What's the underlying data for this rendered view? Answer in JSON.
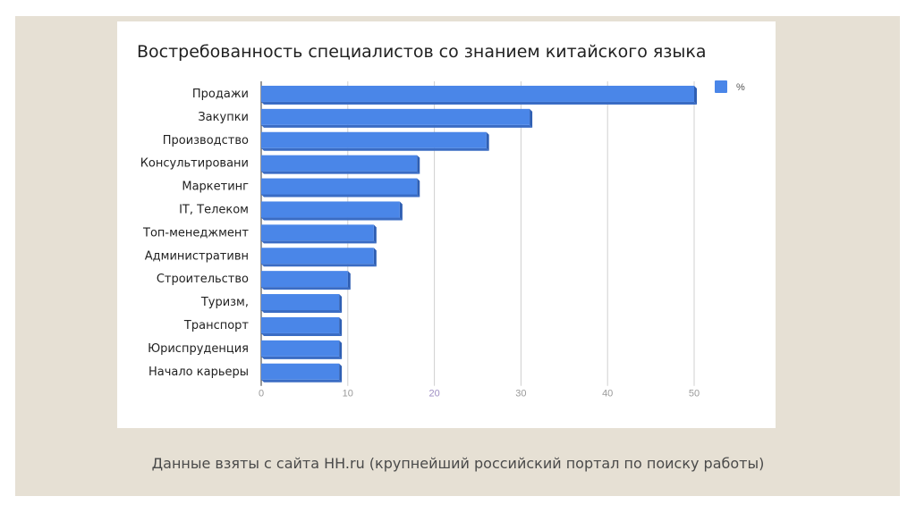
{
  "slide": {
    "caption": "Данные взяты с сайта HH.ru (крупнейший российский портал по поиску работы)"
  },
  "chart_data": {
    "type": "bar",
    "orientation": "horizontal",
    "title": "Востребованность специалистов со знанием китайского языка",
    "categories": [
      "Продажи",
      "Закупки",
      "Производство",
      "Консультировани",
      "Маркетинг",
      "IT, Телеком",
      "Топ-менеджмент",
      "Административн",
      "Строительство",
      "Туризм,",
      "Транспорт",
      "Юриспруденция",
      "Начало карьеры"
    ],
    "series": [
      {
        "name": "%",
        "values": [
          50,
          31,
          26,
          18,
          18,
          16,
          13,
          13,
          10,
          9,
          9,
          9,
          9
        ],
        "color": "#4a86e8"
      }
    ],
    "xlim": [
      0,
      50
    ],
    "xticks": [
      0,
      10,
      20,
      30,
      40,
      50
    ],
    "xlabel": "",
    "ylabel": "",
    "grid": true,
    "legend_position": "top-right"
  }
}
